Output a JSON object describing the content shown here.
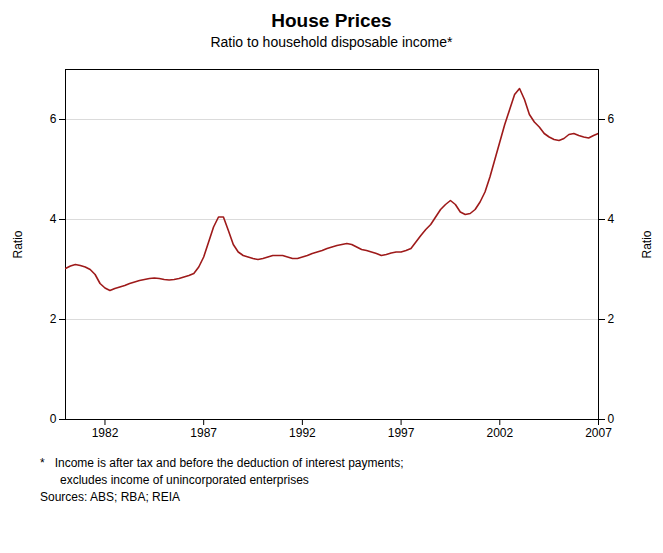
{
  "chart_data": {
    "type": "line",
    "title": "House Prices",
    "subtitle": "Ratio to household disposable income*",
    "ylabel": "Ratio",
    "y2label": "Ratio",
    "footnotes": [
      "*   Income is after tax and before the deduction of interest payments;",
      "      excludes income of unincorporated enterprises",
      "Sources: ABS; RBA; REIA"
    ],
    "color": "#9e1a1a",
    "grid": true,
    "xlim": [
      1980,
      2007
    ],
    "ylim": [
      0,
      7
    ],
    "yticks": [
      0,
      2,
      4,
      6
    ],
    "y2lim": [
      0,
      7
    ],
    "y2ticks": [
      0,
      2,
      4,
      6
    ],
    "xticks": [
      1982,
      1987,
      1992,
      1997,
      2002,
      2007
    ],
    "x": [
      1980.0,
      1980.25,
      1980.5,
      1980.75,
      1981.0,
      1981.25,
      1981.5,
      1981.75,
      1982.0,
      1982.25,
      1982.5,
      1982.75,
      1983.0,
      1983.25,
      1983.5,
      1983.75,
      1984.0,
      1984.25,
      1984.5,
      1984.75,
      1985.0,
      1985.25,
      1985.5,
      1985.75,
      1986.0,
      1986.25,
      1986.5,
      1986.75,
      1987.0,
      1987.25,
      1987.5,
      1987.75,
      1988.0,
      1988.25,
      1988.5,
      1988.75,
      1989.0,
      1989.25,
      1989.5,
      1989.75,
      1990.0,
      1990.25,
      1990.5,
      1990.75,
      1991.0,
      1991.25,
      1991.5,
      1991.75,
      1992.0,
      1992.25,
      1992.5,
      1992.75,
      1993.0,
      1993.25,
      1993.5,
      1993.75,
      1994.0,
      1994.25,
      1994.5,
      1994.75,
      1995.0,
      1995.25,
      1995.5,
      1995.75,
      1996.0,
      1996.25,
      1996.5,
      1996.75,
      1997.0,
      1997.25,
      1997.5,
      1997.75,
      1998.0,
      1998.25,
      1998.5,
      1998.75,
      1999.0,
      1999.25,
      1999.5,
      1999.75,
      2000.0,
      2000.25,
      2000.5,
      2000.75,
      2001.0,
      2001.25,
      2001.5,
      2001.75,
      2002.0,
      2002.25,
      2002.5,
      2002.75,
      2003.0,
      2003.25,
      2003.5,
      2003.75,
      2004.0,
      2004.25,
      2004.5,
      2004.75,
      2005.0,
      2005.25,
      2005.5,
      2005.75,
      2006.0,
      2006.25,
      2006.5,
      2006.75,
      2007.0
    ],
    "values": [
      3.02,
      3.07,
      3.1,
      3.08,
      3.05,
      3.0,
      2.9,
      2.72,
      2.63,
      2.58,
      2.62,
      2.65,
      2.68,
      2.72,
      2.75,
      2.78,
      2.8,
      2.82,
      2.83,
      2.82,
      2.8,
      2.79,
      2.8,
      2.82,
      2.85,
      2.88,
      2.92,
      3.05,
      3.25,
      3.55,
      3.85,
      4.05,
      4.05,
      3.78,
      3.5,
      3.35,
      3.28,
      3.25,
      3.22,
      3.2,
      3.22,
      3.25,
      3.28,
      3.28,
      3.28,
      3.25,
      3.22,
      3.22,
      3.25,
      3.28,
      3.32,
      3.35,
      3.38,
      3.42,
      3.45,
      3.48,
      3.5,
      3.52,
      3.5,
      3.45,
      3.4,
      3.38,
      3.35,
      3.32,
      3.28,
      3.3,
      3.33,
      3.35,
      3.35,
      3.38,
      3.42,
      3.55,
      3.68,
      3.8,
      3.9,
      4.05,
      4.2,
      4.3,
      4.38,
      4.3,
      4.15,
      4.1,
      4.12,
      4.2,
      4.35,
      4.55,
      4.85,
      5.2,
      5.55,
      5.9,
      6.2,
      6.5,
      6.62,
      6.4,
      6.1,
      5.95,
      5.85,
      5.72,
      5.65,
      5.6,
      5.58,
      5.62,
      5.7,
      5.72,
      5.68,
      5.65,
      5.63,
      5.68,
      5.72
    ]
  }
}
